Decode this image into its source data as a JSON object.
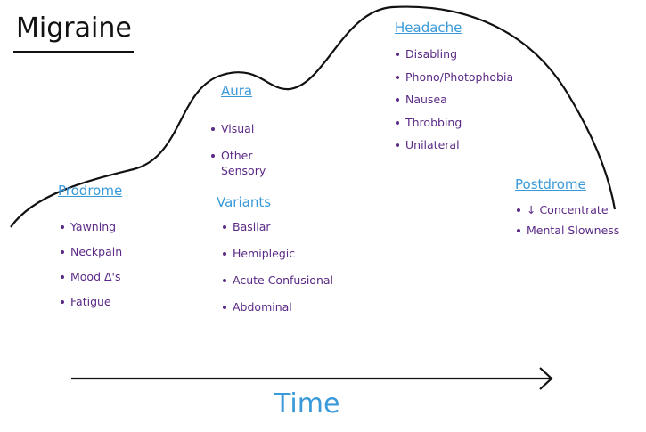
{
  "title": "Migraine",
  "sections": [
    {
      "heading": "Prodrome",
      "items": [
        "Yawning",
        "Neckpain",
        "Mood Δ's",
        "Fatigue"
      ]
    },
    {
      "heading": "Aura",
      "items": [
        "Visual",
        "Other Sensory"
      ]
    },
    {
      "heading": "Variants",
      "items": [
        "Basilar",
        "Hemiplegic",
        "Acute Confusional",
        "Abdominal"
      ]
    },
    {
      "heading": "Headache",
      "items": [
        "Disabling",
        "Phono/Photophobia",
        "Nausea",
        "Throbbing",
        "Unilateral"
      ]
    },
    {
      "heading": "Postdrome",
      "items": [
        "↓ Concentrate",
        "Mental Slowness"
      ]
    }
  ],
  "axis_label": "Time"
}
